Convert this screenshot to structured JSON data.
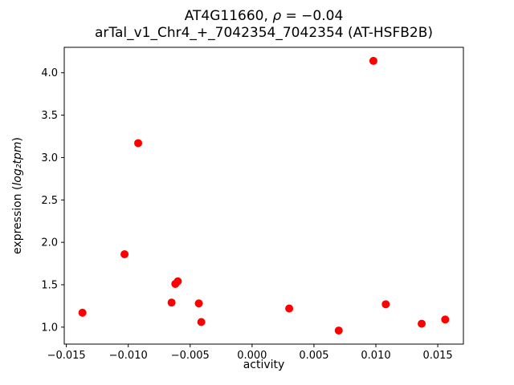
{
  "title": {
    "gene": "AT4G11660, ",
    "rho_symbol": "ρ",
    "rho_value": " = −0.04",
    "subtitle": "arTal_v1_Chr4_+_7042354_7042354 (AT-HSFB2B)"
  },
  "axes": {
    "xlabel": "activity",
    "ylabel_prefix": "expression (",
    "ylabel_math": "log₂tpm",
    "ylabel_suffix": ")"
  },
  "chart_data": {
    "type": "scatter",
    "title": "AT4G11660, ρ = −0.04",
    "subtitle": "arTal_v1_Chr4_+_7042354_7042354 (AT-HSFB2B)",
    "xlabel": "activity",
    "ylabel": "expression (log2tpm)",
    "marker_color": "#ff0000",
    "grid": false,
    "legend": false,
    "xlim": [
      -0.01517,
      0.01707
    ],
    "ylim": [
      0.8,
      4.3
    ],
    "xticks": [
      -0.015,
      -0.01,
      -0.005,
      0.0,
      0.005,
      0.01,
      0.015
    ],
    "xtick_labels": [
      "−0.015",
      "−0.010",
      "−0.005",
      "0.000",
      "0.005",
      "0.010",
      "0.015"
    ],
    "yticks": [
      1.0,
      1.5,
      2.0,
      2.5,
      3.0,
      3.5,
      4.0
    ],
    "ytick_labels": [
      "1.0",
      "1.5",
      "2.0",
      "2.5",
      "3.0",
      "3.5",
      "4.0"
    ],
    "points": [
      [
        -0.0137,
        1.17
      ],
      [
        -0.0103,
        1.86
      ],
      [
        -0.0092,
        3.17
      ],
      [
        -0.0065,
        1.29
      ],
      [
        -0.0062,
        1.51
      ],
      [
        -0.006,
        1.54
      ],
      [
        -0.0043,
        1.28
      ],
      [
        -0.0041,
        1.06
      ],
      [
        0.003,
        1.22
      ],
      [
        0.007,
        0.96
      ],
      [
        0.0098,
        4.14
      ],
      [
        0.0108,
        1.27
      ],
      [
        0.0137,
        1.04
      ],
      [
        0.0156,
        1.09
      ]
    ]
  }
}
